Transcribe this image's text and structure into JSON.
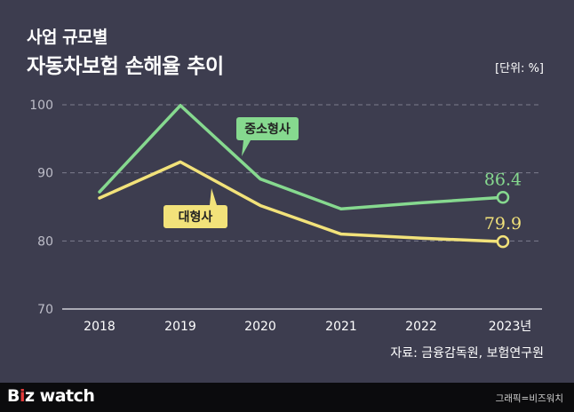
{
  "header": {
    "subtitle": "사업 규모별",
    "title": "자동차보험 손해율 추이",
    "unit": "[단위: %]"
  },
  "source": "자료: 금융감독원, 보험연구원",
  "footer": {
    "logo_prefix": "B",
    "logo_accent": "i",
    "logo_suffix": "z watch",
    "credit": "그래픽=비즈워치"
  },
  "chart_data": {
    "type": "line",
    "title": "자동차보험 손해율 추이",
    "x": [
      "2018",
      "2019",
      "2020",
      "2021",
      "2022",
      "2023년"
    ],
    "ylim": [
      70,
      100
    ],
    "yticks": [
      70,
      80,
      90,
      100
    ],
    "ylabel": "[단위: %]",
    "grid": true,
    "series": [
      {
        "name": "중소형사",
        "color": "#86d98f",
        "values": [
          87.2,
          99.9,
          89.1,
          84.7,
          85.6,
          86.4
        ],
        "end_label": "86.4"
      },
      {
        "name": "대형사",
        "color": "#f2e27a",
        "values": [
          86.3,
          91.6,
          85.2,
          81.0,
          80.4,
          79.9
        ],
        "end_label": "79.9"
      }
    ]
  }
}
